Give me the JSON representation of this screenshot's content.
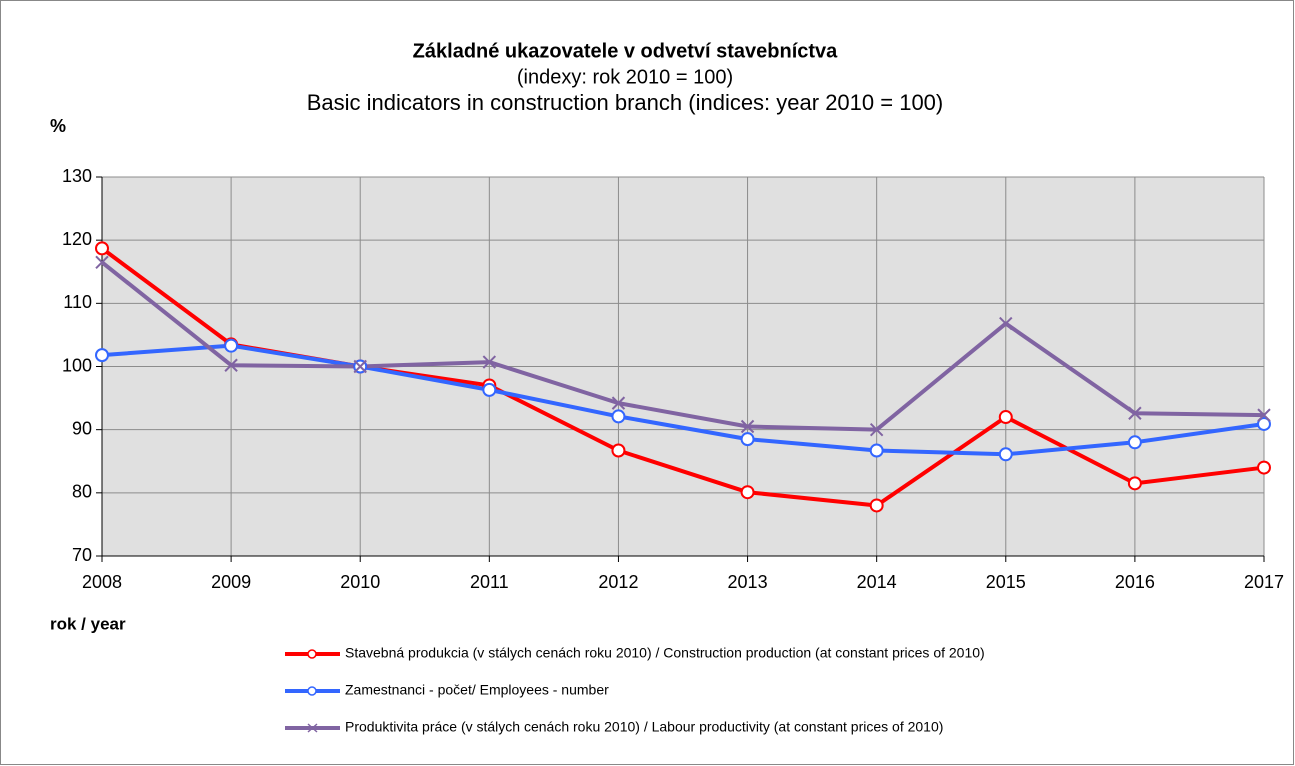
{
  "chart_data": {
    "type": "line",
    "title": "Základné ukazovatele v odvetví stavebníctva",
    "subtitle": "(indexy:  rok 2010 = 100)",
    "subtitle2": "Basic indicators in construction branch (indices:  year 2010 = 100)",
    "ylabel": "%",
    "xlabel": "rok / year",
    "x": [
      2008,
      2009,
      2010,
      2011,
      2012,
      2013,
      2014,
      2015,
      2016,
      2017
    ],
    "xlim": [
      2008,
      2017
    ],
    "xticks": [
      2008,
      2009,
      2010,
      2011,
      2012,
      2013,
      2014,
      2015,
      2016,
      2017
    ],
    "ylim": [
      70,
      130
    ],
    "yticks": [
      70,
      80,
      90,
      100,
      110,
      120,
      130
    ],
    "grid": true,
    "series": [
      {
        "name": "Stavebná produkcia (v stálych cenách roku 2010) / Construction production (at constant prices of 2010)",
        "color": "#ff0000",
        "marker": "circle",
        "values": [
          118.7,
          103.5,
          100,
          97,
          86.7,
          80.1,
          78,
          92,
          81.5,
          84
        ]
      },
      {
        "name": "Zamestnanci - počet/ Employees - number",
        "color": "#3366ff",
        "marker": "circle",
        "values": [
          101.8,
          103.3,
          100,
          96.3,
          92.1,
          88.5,
          86.7,
          86.1,
          88,
          90.9
        ]
      },
      {
        "name": "Produktivita práce (v stálych cenách roku 2010) / Labour productivity (at constant prices of 2010)",
        "color": "#8064a2",
        "marker": "x",
        "values": [
          116.5,
          100.2,
          100,
          100.7,
          94.2,
          90.5,
          90,
          106.8,
          92.6,
          92.3
        ]
      }
    ]
  }
}
